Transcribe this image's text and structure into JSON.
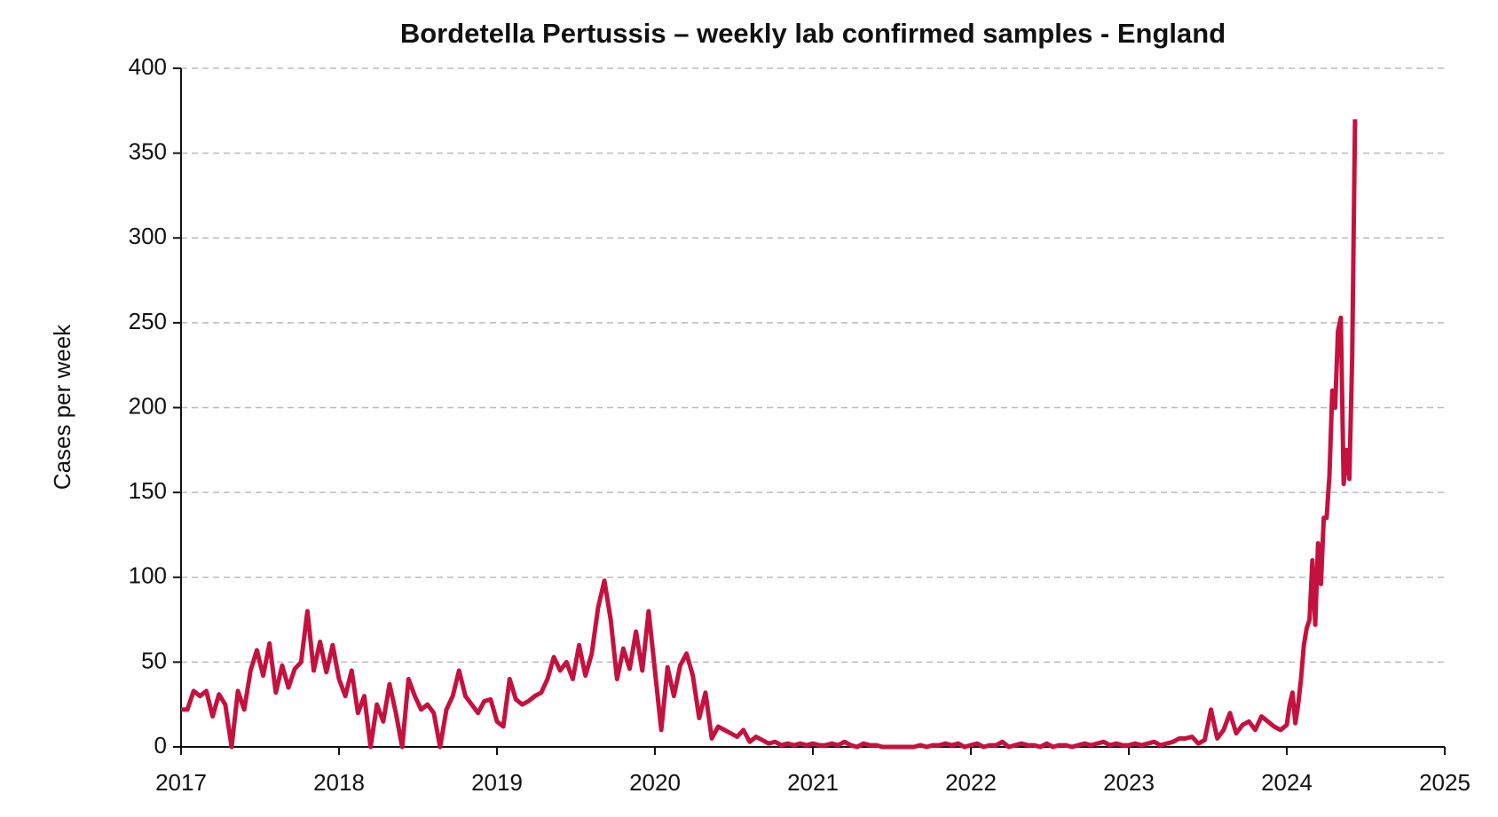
{
  "chart_data": {
    "type": "line",
    "title": "Bordetella Pertussis – weekly lab confirmed samples - England",
    "y_label": "Cases per week",
    "xlim": [
      2017,
      2025
    ],
    "xticks": [
      2017,
      2018,
      2019,
      2020,
      2021,
      2022,
      2023,
      2024,
      2025
    ],
    "ylim": [
      0,
      400
    ],
    "yticks": [
      0,
      50,
      100,
      150,
      200,
      250,
      300,
      350,
      400
    ],
    "grid": true,
    "series": [
      {
        "color": "#c4123f",
        "x": [
          2017,
          2017.04,
          2017.08,
          2017.12,
          2017.16,
          2017.2,
          2017.24,
          2017.28,
          2017.32,
          2017.36,
          2017.4,
          2017.44,
          2017.48,
          2017.52,
          2017.56,
          2017.6,
          2017.64,
          2017.68,
          2017.72,
          2017.76,
          2017.8,
          2017.84,
          2017.88,
          2017.92,
          2017.96,
          2018,
          2018.04,
          2018.08,
          2018.12,
          2018.16,
          2018.2,
          2018.24,
          2018.28,
          2018.32,
          2018.36,
          2018.4,
          2018.44,
          2018.48,
          2018.52,
          2018.56,
          2018.6,
          2018.64,
          2018.68,
          2018.72,
          2018.76,
          2018.8,
          2018.84,
          2018.88,
          2018.92,
          2018.96,
          2019,
          2019.04,
          2019.08,
          2019.12,
          2019.16,
          2019.2,
          2019.24,
          2019.28,
          2019.32,
          2019.36,
          2019.4,
          2019.44,
          2019.48,
          2019.52,
          2019.56,
          2019.6,
          2019.64,
          2019.68,
          2019.72,
          2019.76,
          2019.8,
          2019.84,
          2019.88,
          2019.92,
          2019.96,
          2020,
          2020.04,
          2020.08,
          2020.12,
          2020.16,
          2020.2,
          2020.24,
          2020.28,
          2020.32,
          2020.36,
          2020.4,
          2020.44,
          2020.48,
          2020.52,
          2020.56,
          2020.6,
          2020.64,
          2020.68,
          2020.72,
          2020.76,
          2020.8,
          2020.84,
          2020.88,
          2020.92,
          2020.96,
          2021,
          2021.04,
          2021.08,
          2021.12,
          2021.16,
          2021.2,
          2021.24,
          2021.28,
          2021.32,
          2021.36,
          2021.4,
          2021.44,
          2021.48,
          2021.52,
          2021.56,
          2021.6,
          2021.64,
          2021.68,
          2021.72,
          2021.76,
          2021.8,
          2021.84,
          2021.88,
          2021.92,
          2021.96,
          2022,
          2022.04,
          2022.08,
          2022.12,
          2022.16,
          2022.2,
          2022.24,
          2022.28,
          2022.32,
          2022.36,
          2022.4,
          2022.44,
          2022.48,
          2022.52,
          2022.56,
          2022.6,
          2022.64,
          2022.68,
          2022.72,
          2022.76,
          2022.8,
          2022.84,
          2022.88,
          2022.92,
          2022.96,
          2023,
          2023.04,
          2023.08,
          2023.12,
          2023.16,
          2023.2,
          2023.24,
          2023.28,
          2023.32,
          2023.36,
          2023.4,
          2023.44,
          2023.48,
          2023.52,
          2023.56,
          2023.6,
          2023.64,
          2023.68,
          2023.72,
          2023.76,
          2023.8,
          2023.84,
          2023.88,
          2023.92,
          2023.96,
          2024,
          2024.018,
          2024.036,
          2024.054,
          2024.072,
          2024.09,
          2024.108,
          2024.126,
          2024.144,
          2024.162,
          2024.18,
          2024.198,
          2024.216,
          2024.234,
          2024.252,
          2024.27,
          2024.288,
          2024.306,
          2024.324,
          2024.342,
          2024.36,
          2024.378,
          2024.396,
          2024.414,
          2024.432
        ],
        "values": [
          22,
          22,
          33,
          30,
          33,
          18,
          31,
          25,
          0,
          33,
          22,
          45,
          57,
          42,
          61,
          32,
          48,
          35,
          46,
          50,
          80,
          45,
          62,
          44,
          60,
          40,
          30,
          45,
          20,
          30,
          0,
          25,
          15,
          37,
          20,
          0,
          40,
          30,
          22,
          25,
          20,
          0,
          22,
          30,
          45,
          30,
          25,
          20,
          27,
          28,
          15,
          12,
          40,
          28,
          25,
          27,
          30,
          32,
          40,
          53,
          45,
          50,
          40,
          60,
          42,
          55,
          82,
          98,
          75,
          40,
          58,
          46,
          68,
          45,
          80,
          45,
          10,
          47,
          30,
          48,
          55,
          42,
          17,
          32,
          5,
          12,
          10,
          8,
          6,
          10,
          3,
          6,
          4,
          2,
          3,
          1,
          2,
          1,
          2,
          1,
          2,
          1,
          1,
          2,
          1,
          3,
          1,
          0,
          2,
          1,
          1,
          0,
          0,
          0,
          0,
          0,
          0,
          1,
          0,
          1,
          1,
          2,
          1,
          2,
          0,
          1,
          2,
          0,
          1,
          1,
          3,
          0,
          1,
          2,
          1,
          1,
          0,
          2,
          0,
          1,
          1,
          0,
          1,
          2,
          1,
          2,
          3,
          1,
          2,
          1,
          1,
          2,
          1,
          2,
          3,
          1,
          2,
          3,
          5,
          5,
          6,
          2,
          4,
          22,
          5,
          10,
          20,
          8,
          13,
          15,
          10,
          18,
          15,
          12,
          10,
          13,
          25,
          32,
          14,
          25,
          40,
          60,
          70,
          75,
          110,
          72,
          120,
          96,
          135,
          135,
          160,
          210,
          200,
          245,
          253,
          155,
          175,
          158,
          230,
          370
        ]
      }
    ]
  }
}
